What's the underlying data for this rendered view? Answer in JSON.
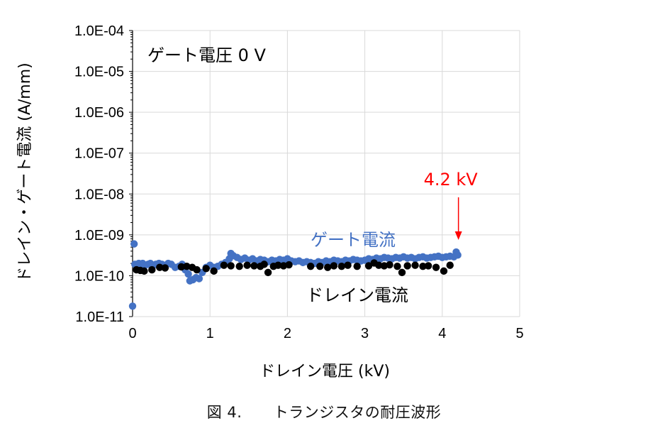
{
  "chart_data": {
    "type": "scatter",
    "xlabel": "ドレイン電圧 (kV)",
    "ylabel": "ドレイン・ゲート電流 (A/mm)",
    "xlim": [
      0,
      5
    ],
    "ylim": [
      1e-11,
      0.0001
    ],
    "yscale": "log",
    "grid": true,
    "x_ticks": [
      "0",
      "1",
      "2",
      "3",
      "4",
      "5"
    ],
    "y_ticks": [
      "1.0E-11",
      "1.0E-10",
      "1.0E-09",
      "1.0E-08",
      "1.0E-07",
      "1.0E-06",
      "1.0E-05",
      "1.0E-04"
    ],
    "series": [
      {
        "name": "ゲート電流",
        "color": "#4472C4",
        "x": [
          0.0,
          0.02,
          0.03,
          0.05,
          0.08,
          0.1,
          0.13,
          0.16,
          0.2,
          0.23,
          0.27,
          0.3,
          0.34,
          0.38,
          0.42,
          0.46,
          0.5,
          0.55,
          0.6,
          0.64,
          0.68,
          0.72,
          0.74,
          0.78,
          0.82,
          0.86,
          0.9,
          0.95,
          1.0,
          1.05,
          1.1,
          1.15,
          1.2,
          1.25,
          1.27,
          1.3,
          1.35,
          1.4,
          1.45,
          1.5,
          1.55,
          1.6,
          1.65,
          1.7,
          1.75,
          1.8,
          1.85,
          1.9,
          1.95,
          2.0,
          2.05,
          2.1,
          2.15,
          2.2,
          2.25,
          2.3,
          2.35,
          2.4,
          2.45,
          2.5,
          2.55,
          2.6,
          2.65,
          2.7,
          2.75,
          2.8,
          2.85,
          2.9,
          2.95,
          3.0,
          3.05,
          3.1,
          3.15,
          3.2,
          3.25,
          3.3,
          3.35,
          3.4,
          3.45,
          3.5,
          3.55,
          3.6,
          3.65,
          3.7,
          3.75,
          3.8,
          3.85,
          3.9,
          3.95,
          4.0,
          4.05,
          4.1,
          4.15,
          4.18,
          4.2
        ],
        "y": [
          1.8e-11,
          6e-10,
          1.9e-10,
          1.8e-10,
          2e-10,
          1.9e-10,
          2e-10,
          1.8e-10,
          1.9e-10,
          2e-10,
          1.8e-10,
          1.9e-10,
          2e-10,
          1.9e-10,
          1.8e-10,
          2e-10,
          1.9e-10,
          1.6e-10,
          1.7e-10,
          1.9e-10,
          1.4e-10,
          1.1e-10,
          7.5e-11,
          8e-11,
          9e-11,
          8.5e-11,
          1.2e-10,
          1.6e-10,
          1.8e-10,
          1.6e-10,
          1.7e-10,
          1.9e-10,
          2.1e-10,
          2.6e-10,
          3.5e-10,
          3.1e-10,
          2.8e-10,
          2.5e-10,
          2.7e-10,
          2.4e-10,
          2.6e-10,
          2.3e-10,
          2.5e-10,
          2.4e-10,
          2.2e-10,
          2.4e-10,
          2.3e-10,
          2.5e-10,
          2.4e-10,
          2.6e-10,
          2.3e-10,
          2.2e-10,
          2.3e-10,
          2.1e-10,
          2.2e-10,
          2.1e-10,
          2e-10,
          2.2e-10,
          2.1e-10,
          2.3e-10,
          2.2e-10,
          2.4e-10,
          2.3e-10,
          2.2e-10,
          2.4e-10,
          2.3e-10,
          2.5e-10,
          2.4e-10,
          2.3e-10,
          2.4e-10,
          2.6e-10,
          2.5e-10,
          2.7e-10,
          2.6e-10,
          2.8e-10,
          2.7e-10,
          2.6e-10,
          2.8e-10,
          2.7e-10,
          2.9e-10,
          2.7e-10,
          2.8e-10,
          2.6e-10,
          2.8e-10,
          2.9e-10,
          2.7e-10,
          2.8e-10,
          2.9e-10,
          3e-10,
          2.8e-10,
          2.9e-10,
          3e-10,
          2.9e-10,
          3.8e-10,
          3.2e-10
        ]
      },
      {
        "name": "ドレイン電流",
        "color": "#000000",
        "x": [
          0.05,
          0.1,
          0.15,
          0.25,
          0.35,
          0.42,
          0.63,
          0.7,
          0.77,
          0.83,
          0.95,
          1.05,
          1.18,
          1.27,
          1.38,
          1.48,
          1.57,
          1.65,
          1.7,
          1.75,
          1.82,
          1.88,
          1.95,
          2.02,
          2.3,
          2.42,
          2.52,
          2.6,
          2.7,
          2.78,
          2.9,
          3.05,
          3.12,
          3.18,
          3.25,
          3.32,
          3.42,
          3.48,
          3.55,
          3.65,
          3.75,
          3.82,
          3.92,
          4.02,
          4.1
        ],
        "y": [
          1.4e-10,
          1.35e-10,
          1.3e-10,
          1.4e-10,
          1.6e-10,
          1.55e-10,
          1.65e-10,
          1.7e-10,
          1.6e-10,
          1.4e-10,
          1.5e-10,
          1.3e-10,
          1.8e-10,
          1.75e-10,
          1.7e-10,
          1.8e-10,
          1.75e-10,
          1.7e-10,
          1.9e-10,
          1.2e-10,
          1.7e-10,
          1.8e-10,
          1.75e-10,
          1.85e-10,
          1.7e-10,
          1.7e-10,
          1.6e-10,
          1.75e-10,
          1.7e-10,
          1.8e-10,
          1.7e-10,
          1.75e-10,
          2.05e-10,
          1.8e-10,
          1.75e-10,
          1.85e-10,
          1.7e-10,
          1.2e-10,
          1.75e-10,
          1.8e-10,
          1.7e-10,
          1.75e-10,
          1.6e-10,
          1.3e-10,
          1.8e-10
        ]
      }
    ],
    "annotations": {
      "condition": "ゲート電圧 0 V",
      "gate_label": "ゲート電流",
      "drain_label": "ドレイン電流",
      "breakdown": "4.2 kV",
      "breakdown_x": 4.2,
      "breakdown_color": "#FF0000"
    }
  },
  "caption": {
    "figure_no": "図 4.",
    "text": "トランジスタの耐圧波形"
  }
}
